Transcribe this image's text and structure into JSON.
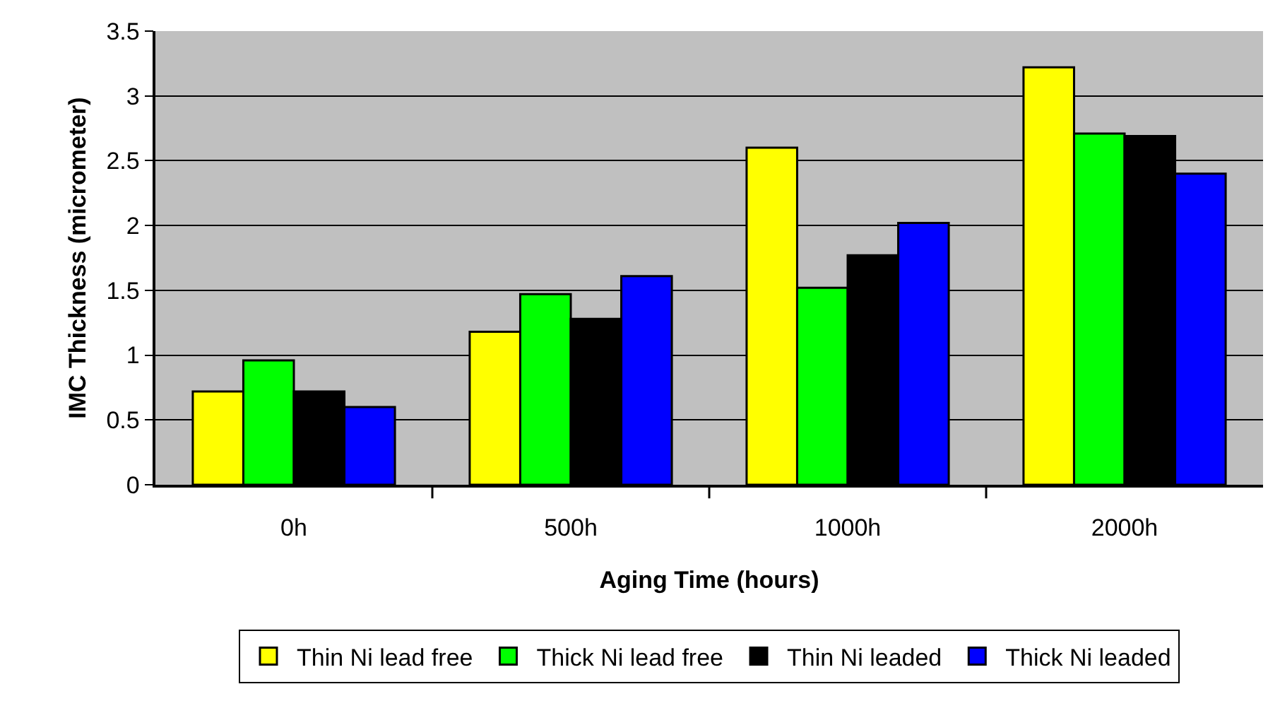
{
  "chart_data": {
    "type": "bar",
    "xlabel": "Aging Time (hours)",
    "ylabel": "IMC Thickness (micrometer)",
    "categories": [
      "0h",
      "500h",
      "1000h",
      "2000h"
    ],
    "series": [
      {
        "name": "Thin Ni lead free",
        "color": "#ffff00",
        "values": [
          0.72,
          1.18,
          2.6,
          3.22
        ]
      },
      {
        "name": "Thick Ni lead free",
        "color": "#00ff00",
        "values": [
          0.96,
          1.47,
          1.52,
          2.71
        ]
      },
      {
        "name": "Thin Ni leaded",
        "color": "#000000",
        "values": [
          0.72,
          1.28,
          1.77,
          2.69
        ]
      },
      {
        "name": "Thick Ni leaded",
        "color": "#0000ff",
        "values": [
          0.6,
          1.61,
          2.02,
          2.4
        ]
      }
    ],
    "ylim": [
      0,
      3.5
    ],
    "yticks": [
      0,
      0.5,
      1,
      1.5,
      2,
      2.5,
      3,
      3.5
    ],
    "grid": "y",
    "legend": "bottom"
  }
}
